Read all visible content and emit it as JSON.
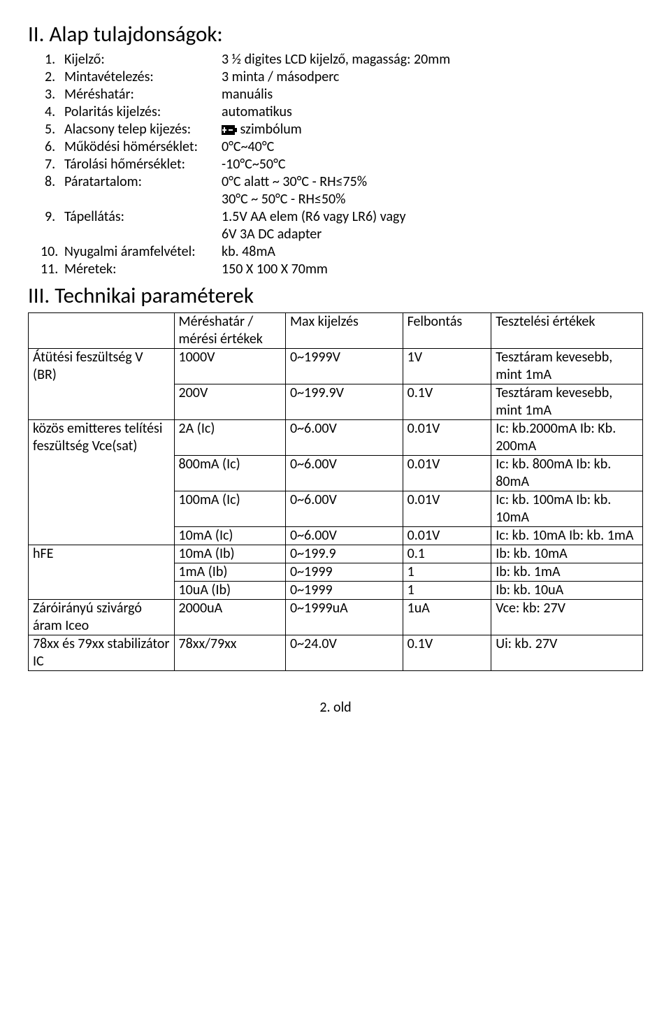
{
  "section1": {
    "title": "II. Alap tulajdonságok:",
    "items": [
      {
        "num": "1.",
        "label": "Kijelző:",
        "value": "3 ½ digites LCD kijelző, magasság: 20mm"
      },
      {
        "num": "2.",
        "label": "Mintavételezés:",
        "value": "3 minta / másodperc"
      },
      {
        "num": "3.",
        "label": "Méréshatár:",
        "value": "manuális"
      },
      {
        "num": "4.",
        "label": "Polaritás kijelzés:",
        "value": "automatikus"
      },
      {
        "num": "5.",
        "label": "Alacsony telep kijezés:",
        "value": " szimbólum",
        "hasIcon": true
      },
      {
        "num": "6.",
        "label": "Működési hömérséklet:",
        "value": "0°C~40°C"
      },
      {
        "num": "7.",
        "label": "Tárolási hőmérséklet:",
        "value": "-10°C~50°C"
      },
      {
        "num": "8.",
        "label": "Páratartalom:",
        "value": "0°C alatt ~ 30°C - RH≤75%",
        "value2": "30°C ~ 50°C - RH≤50%"
      },
      {
        "num": "9.",
        "label": "Tápellátás:",
        "value": "1.5V AA elem (R6 vagy LR6) vagy",
        "value2": "6V 3A DC adapter"
      },
      {
        "num": "10.",
        "label": "Nyugalmi áramfelvétel:",
        "value": "kb. 48mA",
        "tightNum": true
      },
      {
        "num": "11.",
        "label": "Méretek:",
        "value": "150 X 100 X 70mm",
        "tightNum": true
      }
    ]
  },
  "section2": {
    "title": "III. Technikai paraméterek"
  },
  "table": {
    "header": [
      "",
      "Méréshatár / mérési értékek",
      "Max kijelzés",
      "Felbontás",
      "Tesztelési értékek"
    ],
    "rows": [
      {
        "c0": "Átütési feszültség V (BR)",
        "c1": "1000V",
        "c2": "0~1999V",
        "c3": "1V",
        "c4": "Tesztáram kevesebb, mint 1mA",
        "c0span": 2
      },
      {
        "c1": "200V",
        "c2": "0~199.9V",
        "c3": "0.1V",
        "c4": "Tesztáram kevesebb, mint 1mA"
      },
      {
        "c0": "közös emitteres telítési feszültség Vce(sat)",
        "c1": "2A (Ic)",
        "c2": "0~6.00V",
        "c3": "0.01V",
        "c4": "Ic: kb.2000mA Ib: Kb. 200mA",
        "c0span": 4
      },
      {
        "c1": "800mA (Ic)",
        "c2": "0~6.00V",
        "c3": "0.01V",
        "c4": "Ic: kb. 800mA Ib: kb. 80mA"
      },
      {
        "c1": "100mA (Ic)",
        "c2": "0~6.00V",
        "c3": "0.01V",
        "c4": "Ic: kb. 100mA Ib: kb. 10mA"
      },
      {
        "c1": "10mA (Ic)",
        "c2": "0~6.00V",
        "c3": "0.01V",
        "c4": "Ic: kb. 10mA Ib: kb. 1mA"
      },
      {
        "c0": "hFE",
        "c1": "10mA (Ib)",
        "c2": "0~199.9",
        "c3": "0.1",
        "c4": "Ib: kb. 10mA",
        "c0span": 3
      },
      {
        "c1": "1mA (Ib)",
        "c2": "0~1999",
        "c3": "1",
        "c4": "Ib: kb. 1mA"
      },
      {
        "c1": "10uA (Ib)",
        "c2": "0~1999",
        "c3": "1",
        "c4": "Ib: kb. 10uA"
      },
      {
        "c0": "Záróirányú szivárgó áram Iceo",
        "c1": "2000uA",
        "c2": "0~1999uA",
        "c3": "1uA",
        "c4": "Vce: kb: 27V"
      },
      {
        "c0": "78xx és 79xx stabilizátor IC",
        "c1": "78xx/79xx",
        "c2": "0~24.0V",
        "c3": "0.1V",
        "c4": "Ui: kb. 27V"
      }
    ]
  },
  "footer": "2. old"
}
